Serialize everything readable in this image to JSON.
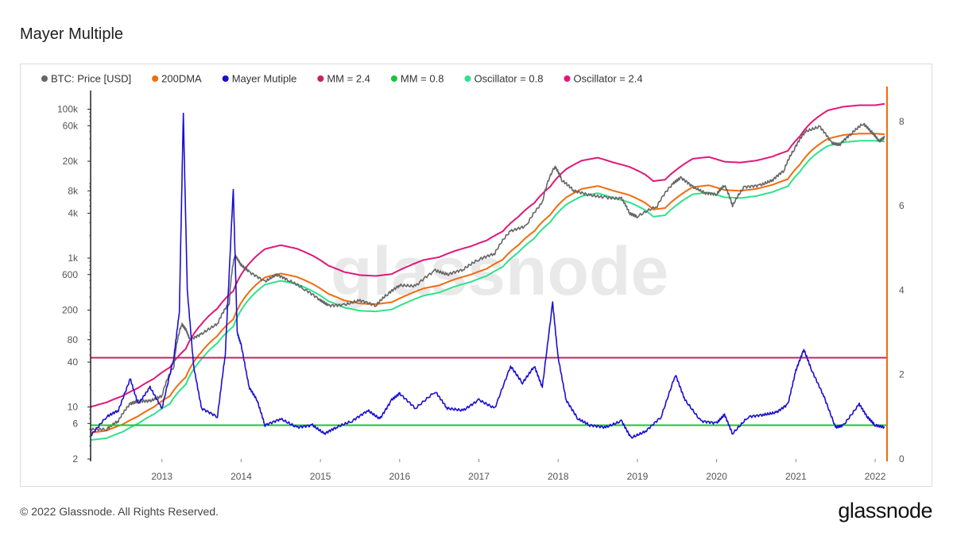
{
  "page": {
    "title": "Mayer Multiple",
    "copyright": "© 2022 Glassnode. All Rights Reserved.",
    "brand": "glassnode",
    "watermark": "glassnode"
  },
  "chart_data": {
    "type": "line",
    "title": "Mayer Multiple",
    "legend": [
      {
        "name": "BTC: Price [USD]",
        "color": "#666666"
      },
      {
        "name": "200DMA",
        "color": "#f26b0f"
      },
      {
        "name": "Mayer Mutiple",
        "color": "#1a0fd0"
      },
      {
        "name": "MM = 2.4",
        "color": "#cc1f5f"
      },
      {
        "name": "MM = 0.8",
        "color": "#1bc43a"
      },
      {
        "name": "Oscillator = 0.8",
        "color": "#2de38a"
      },
      {
        "name": "Oscillator = 2.4",
        "color": "#e0177a"
      }
    ],
    "x_ticks": [
      "2013",
      "2014",
      "2015",
      "2016",
      "2017",
      "2018",
      "2019",
      "2020",
      "2021",
      "2022"
    ],
    "x_range": [
      2012.1,
      2022.15
    ],
    "left_axis": {
      "scale": "log",
      "range": [
        2,
        150000
      ],
      "ticks": [
        2,
        6,
        10,
        40,
        80,
        200,
        600,
        "1k",
        "4k",
        "8k",
        "20k",
        "60k",
        "100k"
      ],
      "tick_values": [
        2,
        6,
        10,
        40,
        80,
        200,
        600,
        1000,
        4000,
        8000,
        20000,
        60000,
        100000
      ]
    },
    "right_axis": {
      "scale": "linear",
      "range": [
        0,
        8.6
      ],
      "ticks": [
        0,
        2,
        4,
        6,
        8
      ]
    },
    "mm_levels": {
      "mm_2_4": 2.4,
      "mm_0_8": 0.8
    },
    "price": [
      [
        2012.1,
        5
      ],
      [
        2012.3,
        5
      ],
      [
        2012.45,
        6.5
      ],
      [
        2012.6,
        11
      ],
      [
        2012.7,
        12
      ],
      [
        2012.85,
        12
      ],
      [
        2013.0,
        14
      ],
      [
        2013.15,
        35
      ],
      [
        2013.25,
        130
      ],
      [
        2013.3,
        110
      ],
      [
        2013.35,
        80
      ],
      [
        2013.5,
        95
      ],
      [
        2013.7,
        130
      ],
      [
        2013.85,
        250
      ],
      [
        2013.92,
        1100
      ],
      [
        2014.0,
        800
      ],
      [
        2014.1,
        650
      ],
      [
        2014.3,
        480
      ],
      [
        2014.45,
        600
      ],
      [
        2014.6,
        500
      ],
      [
        2014.8,
        380
      ],
      [
        2015.0,
        270
      ],
      [
        2015.1,
        230
      ],
      [
        2015.3,
        235
      ],
      [
        2015.5,
        270
      ],
      [
        2015.7,
        230
      ],
      [
        2015.85,
        330
      ],
      [
        2016.0,
        430
      ],
      [
        2016.2,
        420
      ],
      [
        2016.45,
        680
      ],
      [
        2016.6,
        600
      ],
      [
        2016.8,
        700
      ],
      [
        2017.0,
        960
      ],
      [
        2017.2,
        1150
      ],
      [
        2017.4,
        2300
      ],
      [
        2017.6,
        2700
      ],
      [
        2017.8,
        5500
      ],
      [
        2017.96,
        17000
      ],
      [
        2018.05,
        11000
      ],
      [
        2018.2,
        8000
      ],
      [
        2018.4,
        7000
      ],
      [
        2018.6,
        6500
      ],
      [
        2018.8,
        6300
      ],
      [
        2018.9,
        4000
      ],
      [
        2019.0,
        3600
      ],
      [
        2019.25,
        5000
      ],
      [
        2019.45,
        10000
      ],
      [
        2019.55,
        12000
      ],
      [
        2019.7,
        9000
      ],
      [
        2019.85,
        7500
      ],
      [
        2020.0,
        7200
      ],
      [
        2020.1,
        9500
      ],
      [
        2020.2,
        5000
      ],
      [
        2020.35,
        9000
      ],
      [
        2020.55,
        9500
      ],
      [
        2020.7,
        11000
      ],
      [
        2020.85,
        15000
      ],
      [
        2020.98,
        29000
      ],
      [
        2021.12,
        50000
      ],
      [
        2021.3,
        58000
      ],
      [
        2021.45,
        35000
      ],
      [
        2021.55,
        33000
      ],
      [
        2021.7,
        47000
      ],
      [
        2021.85,
        64000
      ],
      [
        2021.95,
        50000
      ],
      [
        2022.05,
        37000
      ],
      [
        2022.12,
        42000
      ]
    ],
    "dma200": [
      [
        2012.1,
        4.5
      ],
      [
        2012.3,
        4.8
      ],
      [
        2012.5,
        5.8
      ],
      [
        2012.7,
        7.5
      ],
      [
        2012.9,
        10
      ],
      [
        2013.1,
        14
      ],
      [
        2013.3,
        25
      ],
      [
        2013.5,
        55
      ],
      [
        2013.7,
        90
      ],
      [
        2013.9,
        150
      ],
      [
        2014.1,
        350
      ],
      [
        2014.3,
        550
      ],
      [
        2014.5,
        620
      ],
      [
        2014.7,
        560
      ],
      [
        2014.9,
        450
      ],
      [
        2015.1,
        330
      ],
      [
        2015.3,
        270
      ],
      [
        2015.5,
        245
      ],
      [
        2015.7,
        240
      ],
      [
        2015.9,
        255
      ],
      [
        2016.1,
        320
      ],
      [
        2016.3,
        390
      ],
      [
        2016.5,
        430
      ],
      [
        2016.7,
        520
      ],
      [
        2016.9,
        600
      ],
      [
        2017.1,
        720
      ],
      [
        2017.3,
        950
      ],
      [
        2017.5,
        1500
      ],
      [
        2017.7,
        2300
      ],
      [
        2017.9,
        3800
      ],
      [
        2018.1,
        6500
      ],
      [
        2018.3,
        8500
      ],
      [
        2018.5,
        9300
      ],
      [
        2018.7,
        8000
      ],
      [
        2018.9,
        7000
      ],
      [
        2019.1,
        5500
      ],
      [
        2019.2,
        4500
      ],
      [
        2019.35,
        4700
      ],
      [
        2019.5,
        6500
      ],
      [
        2019.7,
        9000
      ],
      [
        2019.9,
        9500
      ],
      [
        2020.1,
        8200
      ],
      [
        2020.3,
        8000
      ],
      [
        2020.5,
        8500
      ],
      [
        2020.7,
        9600
      ],
      [
        2020.9,
        11500
      ],
      [
        2021.05,
        18000
      ],
      [
        2021.2,
        28000
      ],
      [
        2021.4,
        40000
      ],
      [
        2021.6,
        45000
      ],
      [
        2021.8,
        47000
      ],
      [
        2022.0,
        47000
      ],
      [
        2022.12,
        46000
      ]
    ],
    "osc_2_4": [
      [
        2012.1,
        10
      ],
      [
        2012.3,
        11.5
      ],
      [
        2012.5,
        14
      ],
      [
        2012.7,
        18
      ],
      [
        2012.9,
        24
      ],
      [
        2013.1,
        34
      ],
      [
        2013.3,
        60
      ],
      [
        2013.5,
        130
      ],
      [
        2013.7,
        210
      ],
      [
        2013.9,
        360
      ],
      [
        2014.1,
        840
      ],
      [
        2014.3,
        1320
      ],
      [
        2014.5,
        1490
      ],
      [
        2014.7,
        1340
      ],
      [
        2014.9,
        1080
      ],
      [
        2015.1,
        790
      ],
      [
        2015.3,
        650
      ],
      [
        2015.5,
        590
      ],
      [
        2015.7,
        575
      ],
      [
        2015.9,
        610
      ],
      [
        2016.1,
        770
      ],
      [
        2016.3,
        940
      ],
      [
        2016.5,
        1030
      ],
      [
        2016.7,
        1250
      ],
      [
        2016.9,
        1440
      ],
      [
        2017.1,
        1730
      ],
      [
        2017.3,
        2280
      ],
      [
        2017.5,
        3600
      ],
      [
        2017.7,
        5500
      ],
      [
        2017.9,
        9100
      ],
      [
        2018.1,
        15600
      ],
      [
        2018.3,
        20400
      ],
      [
        2018.5,
        22300
      ],
      [
        2018.7,
        19200
      ],
      [
        2018.9,
        16800
      ],
      [
        2019.1,
        13200
      ],
      [
        2019.2,
        10800
      ],
      [
        2019.35,
        11300
      ],
      [
        2019.5,
        15600
      ],
      [
        2019.7,
        21600
      ],
      [
        2019.9,
        22800
      ],
      [
        2020.1,
        19700
      ],
      [
        2020.3,
        19200
      ],
      [
        2020.5,
        20400
      ],
      [
        2020.7,
        23000
      ],
      [
        2020.9,
        27600
      ],
      [
        2021.05,
        43200
      ],
      [
        2021.2,
        67200
      ],
      [
        2021.4,
        96000
      ],
      [
        2021.6,
        108000
      ],
      [
        2021.8,
        113000
      ],
      [
        2022.0,
        113000
      ],
      [
        2022.12,
        118000
      ]
    ],
    "osc_0_8": [
      [
        2012.1,
        3.6
      ],
      [
        2012.3,
        3.8
      ],
      [
        2012.5,
        4.6
      ],
      [
        2012.7,
        6.0
      ],
      [
        2012.9,
        8.0
      ],
      [
        2013.1,
        11
      ],
      [
        2013.3,
        20
      ],
      [
        2013.5,
        44
      ],
      [
        2013.7,
        72
      ],
      [
        2013.9,
        120
      ],
      [
        2014.1,
        280
      ],
      [
        2014.3,
        440
      ],
      [
        2014.5,
        496
      ],
      [
        2014.7,
        448
      ],
      [
        2014.9,
        360
      ],
      [
        2015.1,
        264
      ],
      [
        2015.3,
        216
      ],
      [
        2015.5,
        196
      ],
      [
        2015.7,
        192
      ],
      [
        2015.9,
        204
      ],
      [
        2016.1,
        256
      ],
      [
        2016.3,
        312
      ],
      [
        2016.5,
        344
      ],
      [
        2016.7,
        416
      ],
      [
        2016.9,
        480
      ],
      [
        2017.1,
        576
      ],
      [
        2017.3,
        760
      ],
      [
        2017.5,
        1200
      ],
      [
        2017.7,
        1840
      ],
      [
        2017.9,
        3040
      ],
      [
        2018.1,
        5200
      ],
      [
        2018.3,
        6800
      ],
      [
        2018.5,
        7440
      ],
      [
        2018.7,
        6400
      ],
      [
        2018.9,
        5600
      ],
      [
        2019.1,
        4400
      ],
      [
        2019.2,
        3600
      ],
      [
        2019.35,
        3760
      ],
      [
        2019.5,
        5200
      ],
      [
        2019.7,
        7200
      ],
      [
        2019.9,
        7600
      ],
      [
        2020.1,
        6560
      ],
      [
        2020.3,
        6400
      ],
      [
        2020.5,
        6800
      ],
      [
        2020.7,
        7680
      ],
      [
        2020.9,
        9200
      ],
      [
        2021.05,
        14400
      ],
      [
        2021.2,
        22400
      ],
      [
        2021.4,
        32000
      ],
      [
        2021.6,
        36000
      ],
      [
        2021.8,
        37600
      ],
      [
        2022.0,
        37600
      ],
      [
        2022.12,
        36800
      ]
    ],
    "mayer_multiple": [
      [
        2012.1,
        0.55
      ],
      [
        2012.3,
        1.0
      ],
      [
        2012.45,
        1.15
      ],
      [
        2012.6,
        1.9
      ],
      [
        2012.7,
        1.3
      ],
      [
        2012.85,
        1.7
      ],
      [
        2013.0,
        1.2
      ],
      [
        2013.15,
        2.4
      ],
      [
        2013.22,
        3.5
      ],
      [
        2013.27,
        8.2
      ],
      [
        2013.32,
        4.0
      ],
      [
        2013.4,
        2.2
      ],
      [
        2013.5,
        1.2
      ],
      [
        2013.7,
        1.0
      ],
      [
        2013.8,
        2.5
      ],
      [
        2013.9,
        6.4
      ],
      [
        2013.95,
        3.0
      ],
      [
        2014.0,
        2.7
      ],
      [
        2014.1,
        1.7
      ],
      [
        2014.2,
        1.4
      ],
      [
        2014.3,
        0.8
      ],
      [
        2014.5,
        0.95
      ],
      [
        2014.7,
        0.75
      ],
      [
        2014.9,
        0.8
      ],
      [
        2015.05,
        0.6
      ],
      [
        2015.2,
        0.75
      ],
      [
        2015.4,
        0.9
      ],
      [
        2015.6,
        1.15
      ],
      [
        2015.75,
        0.95
      ],
      [
        2015.9,
        1.4
      ],
      [
        2016.0,
        1.55
      ],
      [
        2016.2,
        1.2
      ],
      [
        2016.45,
        1.6
      ],
      [
        2016.6,
        1.2
      ],
      [
        2016.8,
        1.15
      ],
      [
        2017.0,
        1.4
      ],
      [
        2017.2,
        1.2
      ],
      [
        2017.4,
        2.2
      ],
      [
        2017.55,
        1.8
      ],
      [
        2017.7,
        2.2
      ],
      [
        2017.8,
        1.7
      ],
      [
        2017.93,
        3.7
      ],
      [
        2018.0,
        2.4
      ],
      [
        2018.1,
        1.4
      ],
      [
        2018.25,
        0.95
      ],
      [
        2018.4,
        0.8
      ],
      [
        2018.6,
        0.75
      ],
      [
        2018.8,
        0.9
      ],
      [
        2018.92,
        0.5
      ],
      [
        2019.1,
        0.65
      ],
      [
        2019.3,
        1.0
      ],
      [
        2019.48,
        2.0
      ],
      [
        2019.6,
        1.4
      ],
      [
        2019.8,
        0.9
      ],
      [
        2020.0,
        0.85
      ],
      [
        2020.1,
        1.05
      ],
      [
        2020.2,
        0.6
      ],
      [
        2020.4,
        1.0
      ],
      [
        2020.6,
        1.05
      ],
      [
        2020.75,
        1.1
      ],
      [
        2020.9,
        1.3
      ],
      [
        2021.0,
        2.1
      ],
      [
        2021.1,
        2.6
      ],
      [
        2021.2,
        2.1
      ],
      [
        2021.35,
        1.5
      ],
      [
        2021.5,
        0.75
      ],
      [
        2021.6,
        0.8
      ],
      [
        2021.8,
        1.3
      ],
      [
        2021.9,
        1.0
      ],
      [
        2022.0,
        0.8
      ],
      [
        2022.12,
        0.75
      ]
    ]
  }
}
